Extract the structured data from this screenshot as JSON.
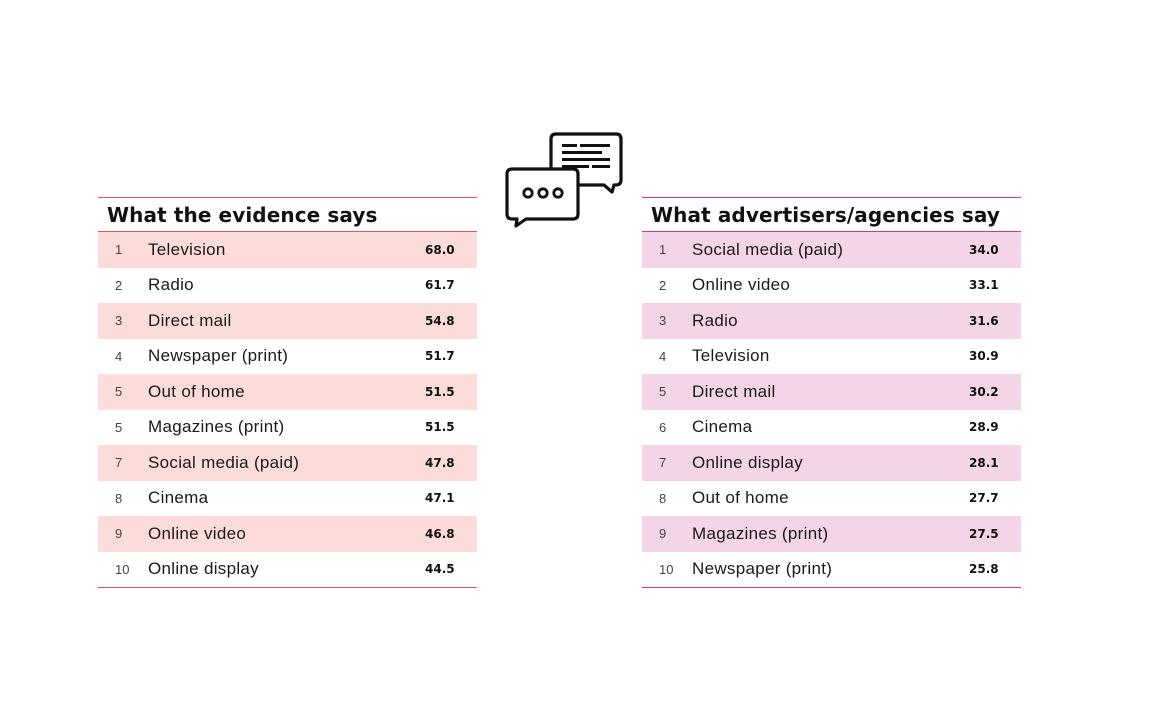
{
  "colors": {
    "evidence_line": "#e25a55",
    "evidence_row": "#fcdcda",
    "agencies_line": "#c8379b",
    "agencies_row": "#f4d4e7"
  },
  "icon": "chat-bubbles-icon",
  "evidence": {
    "title": "What the evidence says",
    "rows": [
      {
        "rank": "1",
        "label": "Television",
        "value": "68.0"
      },
      {
        "rank": "2",
        "label": "Radio",
        "value": "61.7"
      },
      {
        "rank": "3",
        "label": "Direct mail",
        "value": "54.8"
      },
      {
        "rank": "4",
        "label": "Newspaper (print)",
        "value": "51.7"
      },
      {
        "rank": "5",
        "label": "Out of home",
        "value": "51.5"
      },
      {
        "rank": "5",
        "label": "Magazines (print)",
        "value": "51.5"
      },
      {
        "rank": "7",
        "label": "Social media (paid)",
        "value": "47.8"
      },
      {
        "rank": "8",
        "label": "Cinema",
        "value": "47.1"
      },
      {
        "rank": "9",
        "label": "Online video",
        "value": "46.8"
      },
      {
        "rank": "10",
        "label": "Online display",
        "value": "44.5"
      }
    ]
  },
  "agencies": {
    "title": "What advertisers/agencies say",
    "rows": [
      {
        "rank": "1",
        "label": "Social media (paid)",
        "value": "34.0"
      },
      {
        "rank": "2",
        "label": "Online video",
        "value": "33.1"
      },
      {
        "rank": "3",
        "label": "Radio",
        "value": "31.6"
      },
      {
        "rank": "4",
        "label": "Television",
        "value": "30.9"
      },
      {
        "rank": "5",
        "label": "Direct mail",
        "value": "30.2"
      },
      {
        "rank": "6",
        "label": "Cinema",
        "value": "28.9"
      },
      {
        "rank": "7",
        "label": "Online display",
        "value": "28.1"
      },
      {
        "rank": "8",
        "label": "Out of home",
        "value": "27.7"
      },
      {
        "rank": "9",
        "label": "Magazines (print)",
        "value": "27.5"
      },
      {
        "rank": "10",
        "label": "Newspaper (print)",
        "value": "25.8"
      }
    ]
  }
}
